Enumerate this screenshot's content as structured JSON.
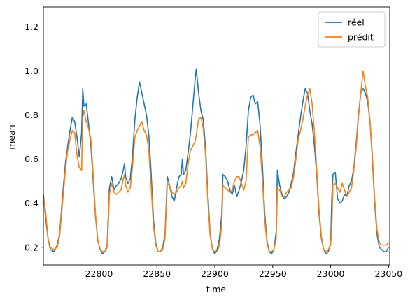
{
  "chart_data": {
    "type": "line",
    "xlabel": "time",
    "ylabel": "mean",
    "xlim": [
      22752,
      23051
    ],
    "ylim": [
      0.12,
      1.29
    ],
    "x_ticks": [
      22800,
      22850,
      22900,
      22950,
      23000,
      23050
    ],
    "y_ticks": [
      0.2,
      0.4,
      0.6,
      0.8,
      1.0,
      1.2
    ],
    "x_tick_labels": [
      "22800",
      "22850",
      "22900",
      "22950",
      "23000",
      "23050"
    ],
    "y_tick_labels": [
      "0.2",
      "0.4",
      "0.6",
      "0.8",
      "1.0",
      "1.2"
    ],
    "grid": false,
    "legend_position": "top-right",
    "series": [
      {
        "name": "réel",
        "color": "#1f77b4",
        "points": [
          [
            22752,
            0.44
          ],
          [
            22754,
            0.33
          ],
          [
            22756,
            0.24
          ],
          [
            22758,
            0.19
          ],
          [
            22761,
            0.18
          ],
          [
            22764,
            0.21
          ],
          [
            22766,
            0.26
          ],
          [
            22769,
            0.46
          ],
          [
            22771,
            0.58
          ],
          [
            22773,
            0.66
          ],
          [
            22775,
            0.73
          ],
          [
            22777,
            0.79
          ],
          [
            22779,
            0.77
          ],
          [
            22781,
            0.7
          ],
          [
            22783,
            0.61
          ],
          [
            22785,
            0.72
          ],
          [
            22786,
            0.92
          ],
          [
            22787,
            0.84
          ],
          [
            22789,
            0.85
          ],
          [
            22791,
            0.76
          ],
          [
            22793,
            0.66
          ],
          [
            22795,
            0.5
          ],
          [
            22797,
            0.34
          ],
          [
            22799,
            0.23
          ],
          [
            22801,
            0.19
          ],
          [
            22803,
            0.17
          ],
          [
            22805,
            0.18
          ],
          [
            22807,
            0.21
          ],
          [
            22808,
            0.34
          ],
          [
            22809,
            0.47
          ],
          [
            22811,
            0.52
          ],
          [
            22813,
            0.46
          ],
          [
            22815,
            0.48
          ],
          [
            22817,
            0.49
          ],
          [
            22819,
            0.51
          ],
          [
            22821,
            0.55
          ],
          [
            22822,
            0.58
          ],
          [
            22823,
            0.52
          ],
          [
            22825,
            0.49
          ],
          [
            22827,
            0.51
          ],
          [
            22829,
            0.62
          ],
          [
            22831,
            0.78
          ],
          [
            22833,
            0.88
          ],
          [
            22835,
            0.95
          ],
          [
            22837,
            0.9
          ],
          [
            22839,
            0.85
          ],
          [
            22841,
            0.8
          ],
          [
            22843,
            0.71
          ],
          [
            22845,
            0.54
          ],
          [
            22847,
            0.33
          ],
          [
            22849,
            0.22
          ],
          [
            22851,
            0.18
          ],
          [
            22853,
            0.18
          ],
          [
            22855,
            0.2
          ],
          [
            22857,
            0.26
          ],
          [
            22859,
            0.52
          ],
          [
            22861,
            0.48
          ],
          [
            22863,
            0.43
          ],
          [
            22865,
            0.41
          ],
          [
            22867,
            0.47
          ],
          [
            22869,
            0.52
          ],
          [
            22871,
            0.53
          ],
          [
            22872,
            0.6
          ],
          [
            22873,
            0.53
          ],
          [
            22875,
            0.55
          ],
          [
            22877,
            0.63
          ],
          [
            22879,
            0.72
          ],
          [
            22881,
            0.84
          ],
          [
            22883,
            0.96
          ],
          [
            22884,
            1.01
          ],
          [
            22886,
            0.9
          ],
          [
            22888,
            0.82
          ],
          [
            22890,
            0.78
          ],
          [
            22892,
            0.65
          ],
          [
            22894,
            0.44
          ],
          [
            22896,
            0.26
          ],
          [
            22898,
            0.19
          ],
          [
            22900,
            0.17
          ],
          [
            22902,
            0.19
          ],
          [
            22904,
            0.24
          ],
          [
            22906,
            0.35
          ],
          [
            22907,
            0.53
          ],
          [
            22909,
            0.52
          ],
          [
            22911,
            0.5
          ],
          [
            22913,
            0.46
          ],
          [
            22915,
            0.44
          ],
          [
            22917,
            0.48
          ],
          [
            22919,
            0.43
          ],
          [
            22921,
            0.46
          ],
          [
            22923,
            0.5
          ],
          [
            22925,
            0.55
          ],
          [
            22927,
            0.66
          ],
          [
            22929,
            0.82
          ],
          [
            22931,
            0.88
          ],
          [
            22933,
            0.89
          ],
          [
            22935,
            0.85
          ],
          [
            22937,
            0.86
          ],
          [
            22939,
            0.76
          ],
          [
            22941,
            0.58
          ],
          [
            22943,
            0.36
          ],
          [
            22945,
            0.23
          ],
          [
            22947,
            0.18
          ],
          [
            22949,
            0.17
          ],
          [
            22951,
            0.19
          ],
          [
            22953,
            0.27
          ],
          [
            22954,
            0.55
          ],
          [
            22956,
            0.48
          ],
          [
            22958,
            0.44
          ],
          [
            22960,
            0.42
          ],
          [
            22962,
            0.43
          ],
          [
            22964,
            0.45
          ],
          [
            22966,
            0.49
          ],
          [
            22968,
            0.54
          ],
          [
            22970,
            0.63
          ],
          [
            22972,
            0.71
          ],
          [
            22974,
            0.79
          ],
          [
            22976,
            0.86
          ],
          [
            22978,
            0.92
          ],
          [
            22980,
            0.9
          ],
          [
            22982,
            0.82
          ],
          [
            22984,
            0.76
          ],
          [
            22986,
            0.66
          ],
          [
            22988,
            0.53
          ],
          [
            22990,
            0.35
          ],
          [
            22992,
            0.24
          ],
          [
            22994,
            0.19
          ],
          [
            22996,
            0.17
          ],
          [
            22998,
            0.18
          ],
          [
            23000,
            0.22
          ],
          [
            23001,
            0.42
          ],
          [
            23002,
            0.53
          ],
          [
            23004,
            0.54
          ],
          [
            23006,
            0.42
          ],
          [
            23008,
            0.4
          ],
          [
            23010,
            0.41
          ],
          [
            23012,
            0.44
          ],
          [
            23014,
            0.43
          ],
          [
            23016,
            0.48
          ],
          [
            23018,
            0.5
          ],
          [
            23020,
            0.56
          ],
          [
            23022,
            0.67
          ],
          [
            23024,
            0.8
          ],
          [
            23026,
            0.9
          ],
          [
            23028,
            0.92
          ],
          [
            23030,
            0.9
          ],
          [
            23032,
            0.86
          ],
          [
            23034,
            0.77
          ],
          [
            23036,
            0.6
          ],
          [
            23038,
            0.4
          ],
          [
            23040,
            0.26
          ],
          [
            23042,
            0.2
          ],
          [
            23044,
            0.19
          ],
          [
            23046,
            0.18
          ],
          [
            23048,
            0.18
          ],
          [
            23050,
            0.2
          ]
        ]
      },
      {
        "name": "prédit",
        "color": "#ff7f0e",
        "points": [
          [
            22752,
            0.42
          ],
          [
            22754,
            0.36
          ],
          [
            22756,
            0.24
          ],
          [
            22758,
            0.2
          ],
          [
            22761,
            0.19
          ],
          [
            22764,
            0.2
          ],
          [
            22766,
            0.25
          ],
          [
            22769,
            0.43
          ],
          [
            22771,
            0.55
          ],
          [
            22773,
            0.64
          ],
          [
            22775,
            0.69
          ],
          [
            22777,
            0.73
          ],
          [
            22779,
            0.72
          ],
          [
            22781,
            0.62
          ],
          [
            22783,
            0.56
          ],
          [
            22785,
            0.55
          ],
          [
            22786,
            0.79
          ],
          [
            22787,
            0.82
          ],
          [
            22789,
            0.77
          ],
          [
            22791,
            0.74
          ],
          [
            22793,
            0.69
          ],
          [
            22795,
            0.53
          ],
          [
            22797,
            0.35
          ],
          [
            22799,
            0.23
          ],
          [
            22801,
            0.19
          ],
          [
            22803,
            0.18
          ],
          [
            22805,
            0.18
          ],
          [
            22807,
            0.2
          ],
          [
            22808,
            0.3
          ],
          [
            22809,
            0.44
          ],
          [
            22811,
            0.49
          ],
          [
            22813,
            0.45
          ],
          [
            22815,
            0.44
          ],
          [
            22817,
            0.45
          ],
          [
            22819,
            0.46
          ],
          [
            22821,
            0.51
          ],
          [
            22822,
            0.53
          ],
          [
            22823,
            0.48
          ],
          [
            22825,
            0.45
          ],
          [
            22827,
            0.47
          ],
          [
            22829,
            0.57
          ],
          [
            22831,
            0.7
          ],
          [
            22833,
            0.73
          ],
          [
            22835,
            0.75
          ],
          [
            22837,
            0.77
          ],
          [
            22839,
            0.73
          ],
          [
            22841,
            0.71
          ],
          [
            22843,
            0.64
          ],
          [
            22845,
            0.48
          ],
          [
            22847,
            0.3
          ],
          [
            22849,
            0.21
          ],
          [
            22851,
            0.18
          ],
          [
            22853,
            0.18
          ],
          [
            22855,
            0.19
          ],
          [
            22857,
            0.24
          ],
          [
            22859,
            0.49
          ],
          [
            22861,
            0.48
          ],
          [
            22863,
            0.45
          ],
          [
            22865,
            0.44
          ],
          [
            22867,
            0.45
          ],
          [
            22869,
            0.47
          ],
          [
            22871,
            0.48
          ],
          [
            22872,
            0.5
          ],
          [
            22873,
            0.47
          ],
          [
            22875,
            0.49
          ],
          [
            22877,
            0.58
          ],
          [
            22879,
            0.64
          ],
          [
            22881,
            0.66
          ],
          [
            22883,
            0.68
          ],
          [
            22884,
            0.71
          ],
          [
            22886,
            0.78
          ],
          [
            22888,
            0.79
          ],
          [
            22890,
            0.74
          ],
          [
            22892,
            0.62
          ],
          [
            22894,
            0.41
          ],
          [
            22896,
            0.25
          ],
          [
            22898,
            0.19
          ],
          [
            22900,
            0.18
          ],
          [
            22902,
            0.18
          ],
          [
            22904,
            0.21
          ],
          [
            22906,
            0.3
          ],
          [
            22907,
            0.48
          ],
          [
            22909,
            0.47
          ],
          [
            22911,
            0.46
          ],
          [
            22913,
            0.45
          ],
          [
            22915,
            0.46
          ],
          [
            22917,
            0.5
          ],
          [
            22919,
            0.52
          ],
          [
            22921,
            0.52
          ],
          [
            22923,
            0.49
          ],
          [
            22925,
            0.46
          ],
          [
            22927,
            0.5
          ],
          [
            22929,
            0.7
          ],
          [
            22931,
            0.71
          ],
          [
            22933,
            0.71
          ],
          [
            22935,
            0.72
          ],
          [
            22937,
            0.73
          ],
          [
            22939,
            0.66
          ],
          [
            22941,
            0.52
          ],
          [
            22943,
            0.33
          ],
          [
            22945,
            0.22
          ],
          [
            22947,
            0.18
          ],
          [
            22949,
            0.18
          ],
          [
            22951,
            0.19
          ],
          [
            22953,
            0.24
          ],
          [
            22954,
            0.47
          ],
          [
            22956,
            0.46
          ],
          [
            22958,
            0.43
          ],
          [
            22960,
            0.43
          ],
          [
            22962,
            0.45
          ],
          [
            22964,
            0.46
          ],
          [
            22966,
            0.47
          ],
          [
            22968,
            0.52
          ],
          [
            22970,
            0.6
          ],
          [
            22972,
            0.69
          ],
          [
            22974,
            0.73
          ],
          [
            22976,
            0.78
          ],
          [
            22978,
            0.84
          ],
          [
            22980,
            0.89
          ],
          [
            22982,
            0.92
          ],
          [
            22984,
            0.85
          ],
          [
            22986,
            0.72
          ],
          [
            22988,
            0.55
          ],
          [
            22990,
            0.37
          ],
          [
            22992,
            0.25
          ],
          [
            22994,
            0.19
          ],
          [
            22996,
            0.18
          ],
          [
            22998,
            0.19
          ],
          [
            23000,
            0.21
          ],
          [
            23001,
            0.3
          ],
          [
            23002,
            0.48
          ],
          [
            23004,
            0.49
          ],
          [
            23006,
            0.47
          ],
          [
            23008,
            0.45
          ],
          [
            23010,
            0.49
          ],
          [
            23012,
            0.46
          ],
          [
            23014,
            0.43
          ],
          [
            23016,
            0.45
          ],
          [
            23018,
            0.47
          ],
          [
            23020,
            0.55
          ],
          [
            23022,
            0.65
          ],
          [
            23024,
            0.79
          ],
          [
            23026,
            0.9
          ],
          [
            23028,
            1.0
          ],
          [
            23030,
            0.93
          ],
          [
            23032,
            0.88
          ],
          [
            23034,
            0.77
          ],
          [
            23036,
            0.62
          ],
          [
            23038,
            0.42
          ],
          [
            23040,
            0.28
          ],
          [
            23042,
            0.22
          ],
          [
            23044,
            0.21
          ],
          [
            23046,
            0.21
          ],
          [
            23048,
            0.21
          ],
          [
            23050,
            0.22
          ]
        ]
      }
    ]
  }
}
